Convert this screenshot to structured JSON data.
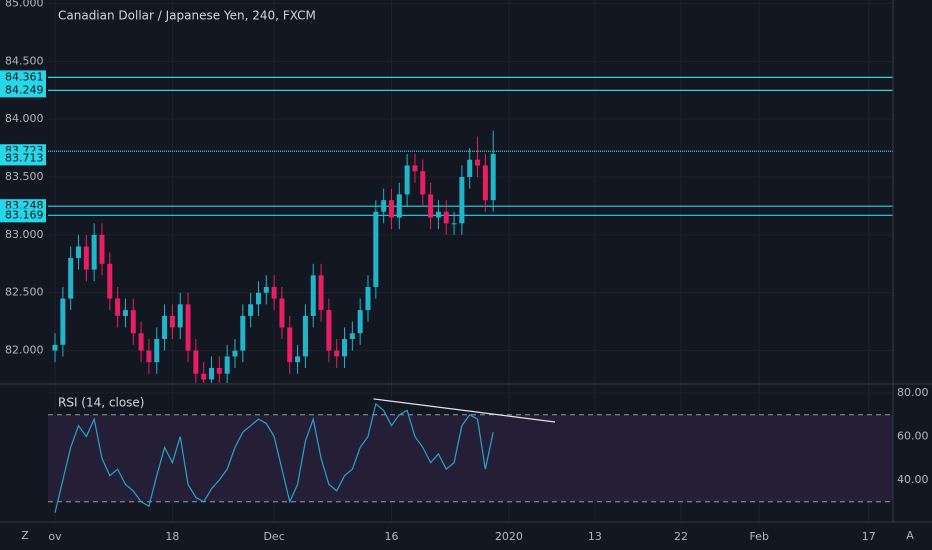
{
  "chart_data": [
    {
      "type": "candlestick",
      "title": "Canadian Dollar / Japanese Yen, 240, FXCM",
      "x": [
        0,
        1,
        2,
        3,
        4,
        5,
        6,
        7,
        8,
        9,
        10,
        11,
        12,
        13,
        14,
        15,
        16,
        17,
        18,
        19,
        20,
        21,
        22,
        23,
        24,
        25,
        26,
        27,
        28,
        29,
        30,
        31,
        32,
        33,
        34,
        35,
        36,
        37,
        38,
        39,
        40,
        41,
        42,
        43,
        44,
        45,
        46,
        47,
        48,
        49,
        50,
        51,
        52,
        53,
        54,
        55,
        56
      ],
      "open": [
        82.0,
        82.05,
        82.45,
        82.8,
        82.9,
        82.7,
        83.0,
        82.75,
        82.45,
        82.3,
        82.35,
        82.15,
        82.0,
        81.9,
        82.1,
        82.3,
        82.2,
        82.4,
        82.0,
        81.8,
        81.75,
        81.85,
        81.8,
        81.95,
        82.0,
        82.3,
        82.4,
        82.5,
        82.55,
        82.45,
        82.2,
        81.9,
        81.95,
        82.3,
        82.65,
        82.35,
        82.0,
        81.95,
        82.1,
        82.15,
        82.35,
        82.55,
        83.2,
        83.3,
        83.15,
        83.35,
        83.6,
        83.55,
        83.35,
        83.15,
        83.2,
        83.1,
        83.1,
        83.5,
        83.65,
        83.6,
        83.3
      ],
      "high": [
        82.15,
        82.55,
        82.9,
        83.0,
        83.0,
        83.1,
        83.1,
        82.85,
        82.55,
        82.45,
        82.45,
        82.25,
        82.1,
        82.2,
        82.4,
        82.4,
        82.5,
        82.5,
        82.1,
        81.9,
        81.95,
        81.95,
        82.05,
        82.1,
        82.4,
        82.5,
        82.6,
        82.65,
        82.65,
        82.55,
        82.3,
        82.05,
        82.4,
        82.75,
        82.75,
        82.45,
        82.1,
        82.2,
        82.25,
        82.45,
        82.65,
        83.3,
        83.4,
        83.4,
        83.45,
        83.7,
        83.7,
        83.65,
        83.45,
        83.3,
        83.3,
        83.2,
        83.6,
        83.75,
        83.85,
        83.7,
        83.9
      ],
      "low": [
        81.9,
        81.95,
        82.35,
        82.7,
        82.6,
        82.6,
        82.65,
        82.35,
        82.2,
        82.2,
        82.05,
        81.9,
        81.8,
        81.8,
        82.0,
        82.1,
        82.1,
        81.9,
        81.7,
        81.65,
        81.65,
        81.7,
        81.7,
        81.85,
        81.9,
        82.2,
        82.3,
        82.4,
        82.35,
        82.1,
        81.8,
        81.8,
        81.85,
        82.2,
        82.25,
        81.9,
        81.85,
        81.85,
        82.0,
        82.05,
        82.25,
        82.45,
        83.1,
        83.05,
        83.05,
        83.25,
        83.45,
        83.25,
        83.05,
        83.05,
        83.0,
        83.0,
        83.0,
        83.4,
        83.5,
        83.2,
        83.2
      ],
      "close": [
        82.05,
        82.45,
        82.8,
        82.9,
        82.7,
        83.0,
        82.75,
        82.45,
        82.3,
        82.35,
        82.15,
        82.0,
        81.9,
        82.1,
        82.3,
        82.2,
        82.4,
        82.0,
        81.8,
        81.75,
        81.85,
        81.8,
        81.95,
        82.0,
        82.3,
        82.4,
        82.5,
        82.55,
        82.45,
        82.2,
        81.9,
        81.95,
        82.3,
        82.65,
        82.35,
        82.0,
        81.95,
        82.1,
        82.15,
        82.35,
        82.55,
        83.2,
        83.3,
        83.15,
        83.35,
        83.6,
        83.55,
        83.35,
        83.15,
        83.2,
        83.1,
        83.1,
        83.5,
        83.65,
        83.6,
        83.3,
        83.7
      ],
      "up_color": "#22b5c9",
      "down_color": "#e91e63",
      "xlim": [
        -0.9,
        107.1
      ],
      "ylim": [
        81.72,
        85.03
      ],
      "yticks": [
        {
          "value": 85,
          "label": "85.000"
        },
        {
          "value": 84.5,
          "label": "84.500"
        },
        {
          "value": 84,
          "label": "84.000"
        },
        {
          "value": 83.5,
          "label": "83.500"
        },
        {
          "value": 83,
          "label": "83.000"
        },
        {
          "value": 82.5,
          "label": "82.500"
        },
        {
          "value": 82,
          "label": "82.000"
        }
      ],
      "levels": [
        {
          "value": 84.361,
          "style": "solid"
        },
        {
          "value": 84.249,
          "style": "solid"
        },
        {
          "value": 83.723,
          "style": "dotted"
        },
        {
          "value": 83.248,
          "style": "solid"
        },
        {
          "value": 83.169,
          "style": "solid"
        }
      ],
      "level_color": "#26d7e8",
      "last_price": 83.713,
      "grid": true
    },
    {
      "type": "line",
      "title": "RSI (14, close)",
      "x": [
        0,
        1,
        2,
        3,
        4,
        5,
        6,
        7,
        8,
        9,
        10,
        11,
        12,
        13,
        14,
        15,
        16,
        17,
        18,
        19,
        20,
        21,
        22,
        23,
        24,
        25,
        26,
        27,
        28,
        29,
        30,
        31,
        32,
        33,
        34,
        35,
        36,
        37,
        38,
        39,
        40,
        41,
        42,
        43,
        44,
        45,
        46,
        47,
        48,
        49,
        50,
        51,
        52,
        53,
        54,
        55,
        56
      ],
      "values": [
        25,
        40,
        55,
        65,
        60,
        68,
        50,
        42,
        45,
        38,
        35,
        30,
        28,
        42,
        55,
        48,
        60,
        38,
        32,
        30,
        36,
        40,
        45,
        55,
        62,
        65,
        68,
        66,
        60,
        45,
        30,
        38,
        58,
        68,
        50,
        38,
        35,
        42,
        45,
        55,
        60,
        75,
        72,
        65,
        70,
        72,
        60,
        55,
        48,
        52,
        45,
        48,
        65,
        70,
        68,
        45,
        62
      ],
      "color": "#29a3c9",
      "band": [
        30,
        70
      ],
      "band_color": "#241f36",
      "trendline": {
        "x": [
          40.7,
          63.9
        ],
        "values": [
          77.3,
          66.7
        ],
        "color": "#e0e3eb"
      },
      "xlim": [
        -0.9,
        107.1
      ],
      "ylim": [
        20.7,
        83.7
      ],
      "yticks": [
        {
          "value": 80,
          "label": "80.00"
        },
        {
          "value": 60,
          "label": "60.00"
        },
        {
          "value": 40,
          "label": "40.00"
        }
      ],
      "xticks": [
        {
          "value": 0,
          "label": "ov"
        },
        {
          "value": 15,
          "label": "18"
        },
        {
          "value": 28,
          "label": "Dec"
        },
        {
          "value": 43,
          "label": "16"
        },
        {
          "value": 58,
          "label": "2020"
        },
        {
          "value": 69,
          "label": "13"
        },
        {
          "value": 80,
          "label": "22"
        },
        {
          "value": 90,
          "label": "Feb"
        },
        {
          "value": 104,
          "label": "17"
        }
      ]
    }
  ],
  "axis_buttons": [
    "Z",
    "A"
  ]
}
